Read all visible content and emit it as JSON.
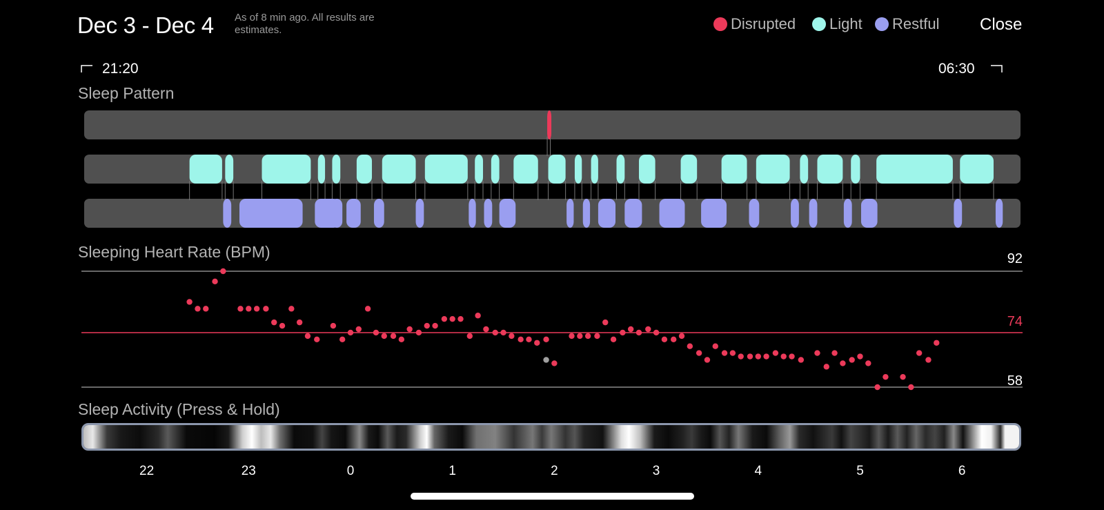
{
  "header": {
    "title": "Dec 3 - Dec 4",
    "note": "As of 8 min ago. All results are estimates.",
    "legend": [
      {
        "label": "Disrupted",
        "color": "#ec3a5a"
      },
      {
        "label": "Light",
        "color": "#9ef5ea"
      },
      {
        "label": "Restful",
        "color": "#9a9ef0"
      }
    ],
    "close_label": "Close"
  },
  "time_range": {
    "start": "21:20",
    "end": "06:30"
  },
  "sleep_pattern": {
    "title": "Sleep Pattern",
    "colors": {
      "disrupted": "#ec3a5a",
      "light": "#9ef5ea",
      "restful": "#9a9ef0",
      "track": "#505050",
      "connector": "#777777"
    },
    "disrupted": [
      [
        1.93,
        1.96
      ]
    ],
    "light": [
      [
        -1.58,
        -1.26
      ],
      [
        -1.23,
        -1.15
      ],
      [
        -0.87,
        -0.39
      ],
      [
        -0.32,
        -0.25
      ],
      [
        -0.18,
        -0.1
      ],
      [
        0.06,
        0.21
      ],
      [
        0.31,
        0.64
      ],
      [
        0.73,
        1.15
      ],
      [
        1.22,
        1.3
      ],
      [
        1.38,
        1.46
      ],
      [
        1.6,
        1.84
      ],
      [
        1.94,
        2.11
      ],
      [
        2.2,
        2.27
      ],
      [
        2.36,
        2.43
      ],
      [
        2.61,
        2.69
      ],
      [
        2.83,
        2.99
      ],
      [
        3.24,
        3.4
      ],
      [
        3.64,
        3.89
      ],
      [
        3.98,
        4.31
      ],
      [
        4.41,
        4.49
      ],
      [
        4.58,
        4.83
      ],
      [
        4.91,
        5.0
      ],
      [
        5.16,
        5.91
      ],
      [
        5.98,
        6.31
      ]
    ],
    "restful": [
      [
        -1.25,
        -1.17
      ],
      [
        -1.09,
        -0.47
      ],
      [
        -0.35,
        -0.11
      ],
      [
        -0.19,
        -0.08
      ],
      [
        -0.04,
        0.1
      ],
      [
        0.23,
        0.33
      ],
      [
        0.64,
        0.72
      ],
      [
        1.16,
        1.23
      ],
      [
        1.31,
        1.39
      ],
      [
        1.46,
        1.62
      ],
      [
        2.12,
        2.19
      ],
      [
        2.28,
        2.35
      ],
      [
        2.43,
        2.6
      ],
      [
        2.69,
        2.86
      ],
      [
        3.03,
        3.28
      ],
      [
        3.44,
        3.69
      ],
      [
        3.91,
        4.01
      ],
      [
        4.32,
        4.4
      ],
      [
        4.5,
        4.58
      ],
      [
        4.84,
        4.92
      ],
      [
        5.01,
        5.17
      ],
      [
        5.92,
        6.0
      ],
      [
        6.33,
        6.4
      ]
    ]
  },
  "heart_rate": {
    "title": "Sleeping Heart Rate (BPM)",
    "max": 92,
    "avg": 74,
    "min": 58,
    "max_label": "92",
    "avg_label": "74",
    "min_label": "58",
    "dot_color": "#ec3a5a",
    "outlier_color": "#a0a0a0",
    "points": [
      [
        -1.58,
        83
      ],
      [
        -1.5,
        81
      ],
      [
        -1.42,
        81
      ],
      [
        -1.33,
        89
      ],
      [
        -1.25,
        92
      ],
      [
        -1.08,
        81
      ],
      [
        -1.0,
        81
      ],
      [
        -0.92,
        81
      ],
      [
        -0.83,
        81
      ],
      [
        -0.75,
        77
      ],
      [
        -0.67,
        76
      ],
      [
        -0.58,
        81
      ],
      [
        -0.5,
        77
      ],
      [
        -0.42,
        73
      ],
      [
        -0.33,
        72
      ],
      [
        -0.17,
        76
      ],
      [
        -0.08,
        72
      ],
      [
        0.0,
        74
      ],
      [
        0.08,
        75
      ],
      [
        0.17,
        81
      ],
      [
        0.25,
        74
      ],
      [
        0.33,
        73
      ],
      [
        0.42,
        73
      ],
      [
        0.5,
        72
      ],
      [
        0.58,
        75
      ],
      [
        0.67,
        74
      ],
      [
        0.75,
        76
      ],
      [
        0.83,
        76
      ],
      [
        0.92,
        78
      ],
      [
        1.0,
        78
      ],
      [
        1.08,
        78
      ],
      [
        1.17,
        73
      ],
      [
        1.25,
        79
      ],
      [
        1.33,
        75
      ],
      [
        1.42,
        74
      ],
      [
        1.5,
        74
      ],
      [
        1.58,
        73
      ],
      [
        1.67,
        72
      ],
      [
        1.75,
        72
      ],
      [
        1.83,
        71
      ],
      [
        1.92,
        72
      ],
      [
        2.0,
        65
      ],
      [
        2.17,
        73
      ],
      [
        2.25,
        73
      ],
      [
        2.33,
        73
      ],
      [
        2.42,
        73
      ],
      [
        2.5,
        77
      ],
      [
        2.58,
        72
      ],
      [
        2.67,
        74
      ],
      [
        2.75,
        75
      ],
      [
        2.83,
        74
      ],
      [
        2.92,
        75
      ],
      [
        3.0,
        74
      ],
      [
        3.08,
        72
      ],
      [
        3.17,
        72
      ],
      [
        3.25,
        73
      ],
      [
        3.33,
        70
      ],
      [
        3.42,
        68
      ],
      [
        3.5,
        66
      ],
      [
        3.58,
        70
      ],
      [
        3.67,
        68
      ],
      [
        3.75,
        68
      ],
      [
        3.83,
        67
      ],
      [
        3.92,
        67
      ],
      [
        4.0,
        67
      ],
      [
        4.08,
        67
      ],
      [
        4.17,
        68
      ],
      [
        4.25,
        67
      ],
      [
        4.33,
        67
      ],
      [
        4.42,
        66
      ],
      [
        4.58,
        68
      ],
      [
        4.67,
        64
      ],
      [
        4.75,
        68
      ],
      [
        4.83,
        65
      ],
      [
        4.92,
        66
      ],
      [
        5.0,
        67
      ],
      [
        5.08,
        65
      ],
      [
        5.17,
        58
      ],
      [
        5.25,
        61
      ],
      [
        5.42,
        61
      ],
      [
        5.5,
        58
      ],
      [
        5.58,
        68
      ],
      [
        5.67,
        66
      ],
      [
        5.75,
        71
      ]
    ],
    "outliers": [
      [
        1.92,
        66
      ]
    ]
  },
  "sleep_activity": {
    "title": "Sleep Activity (Press & Hold)",
    "axis_ticks": [
      "22",
      "23",
      "0",
      "1",
      "2",
      "3",
      "4",
      "5",
      "6"
    ]
  }
}
